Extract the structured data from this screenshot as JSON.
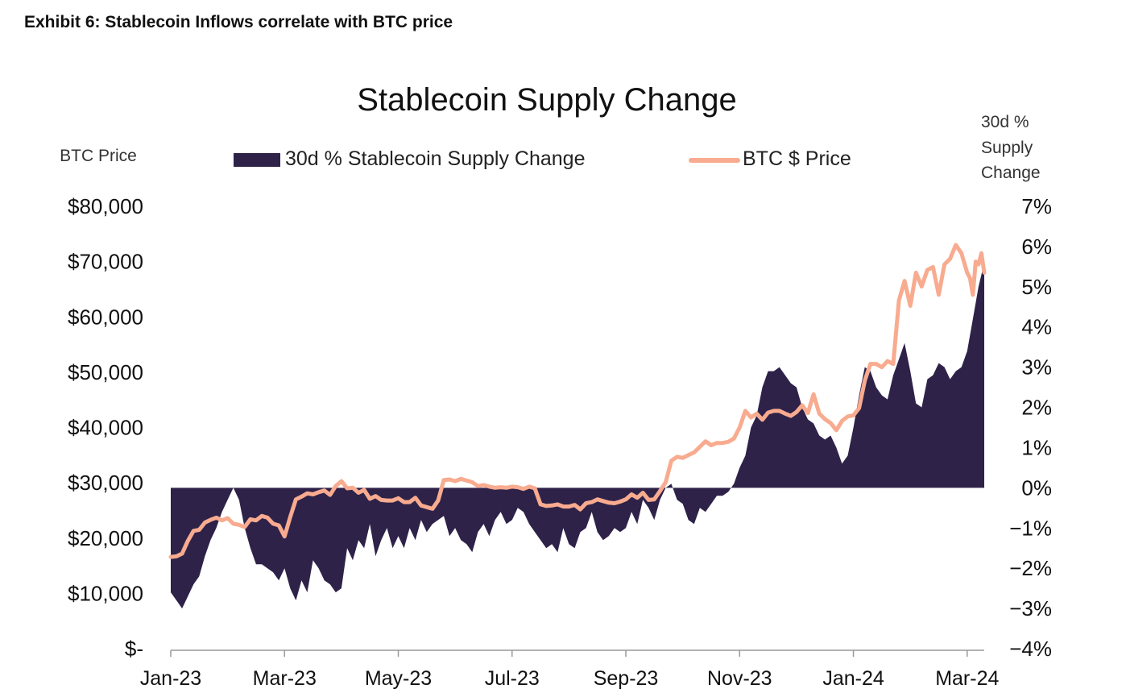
{
  "header": {
    "exhibit_title": "Exhibit 6: Stablecoin Inflows correlate with BTC price"
  },
  "colors": {
    "area": "#2e2249",
    "line": "#f8ab8f",
    "axis": "#999999"
  },
  "chart_data": {
    "type": "area+line",
    "title": "Stablecoin Supply Change",
    "legend": [
      "30d % Stablecoin Supply Change",
      "BTC $ Price"
    ],
    "legend_position": "top-center",
    "y_left": {
      "label": "BTC Price",
      "range": [
        0,
        80000
      ],
      "ticks": [
        "$80,000",
        "$70,000",
        "$60,000",
        "$50,000",
        "$40,000",
        "$30,000",
        "$20,000",
        "$10,000",
        "$-"
      ]
    },
    "y_right": {
      "label_lines": [
        "30d %",
        "Supply",
        "Change"
      ],
      "range": [
        -4,
        7
      ],
      "ticks": [
        "7%",
        "6%",
        "5%",
        "4%",
        "3%",
        "2%",
        "1%",
        "0%",
        "−1%",
        "−2%",
        "−3%",
        "−4%"
      ]
    },
    "x_axis": {
      "range_months": [
        0,
        14.3
      ],
      "tick_positions": [
        0,
        2,
        4,
        6,
        8,
        10,
        12,
        14
      ],
      "tick_labels": [
        "Jan-23",
        "Mar-23",
        "May-23",
        "Jul-23",
        "Sep-23",
        "Nov-23",
        "Jan-24",
        "Mar-24"
      ]
    },
    "series": [
      {
        "name": "30d % Stablecoin Supply Change",
        "kind": "area",
        "axis": "right",
        "x": [
          0,
          0.1,
          0.2,
          0.3,
          0.4,
          0.5,
          0.6,
          0.7,
          0.8,
          0.9,
          1.0,
          1.1,
          1.2,
          1.3,
          1.4,
          1.5,
          1.6,
          1.7,
          1.8,
          1.9,
          2.0,
          2.1,
          2.2,
          2.3,
          2.4,
          2.5,
          2.6,
          2.7,
          2.8,
          2.9,
          3.0,
          3.1,
          3.2,
          3.3,
          3.4,
          3.5,
          3.6,
          3.7,
          3.8,
          3.9,
          4.0,
          4.1,
          4.2,
          4.3,
          4.4,
          4.5,
          4.6,
          4.7,
          4.8,
          4.9,
          5.0,
          5.1,
          5.2,
          5.3,
          5.4,
          5.5,
          5.6,
          5.7,
          5.8,
          5.9,
          6.0,
          6.1,
          6.2,
          6.3,
          6.4,
          6.5,
          6.6,
          6.7,
          6.8,
          6.9,
          7.0,
          7.1,
          7.2,
          7.3,
          7.4,
          7.5,
          7.6,
          7.7,
          7.8,
          7.9,
          8.0,
          8.1,
          8.2,
          8.3,
          8.4,
          8.5,
          8.6,
          8.7,
          8.8,
          8.9,
          9.0,
          9.1,
          9.2,
          9.3,
          9.4,
          9.5,
          9.6,
          9.7,
          9.8,
          9.9,
          10.0,
          10.1,
          10.2,
          10.3,
          10.4,
          10.5,
          10.6,
          10.7,
          10.8,
          10.9,
          11.0,
          11.1,
          11.2,
          11.3,
          11.4,
          11.5,
          11.6,
          11.7,
          11.8,
          11.9,
          12.0,
          12.1,
          12.2,
          12.3,
          12.4,
          12.5,
          12.6,
          12.7,
          12.8,
          12.9,
          13.0,
          13.1,
          13.2,
          13.3,
          13.4,
          13.5,
          13.6,
          13.7,
          13.8,
          13.9,
          14.0,
          14.1,
          14.2,
          14.3
        ],
        "values": [
          -2.6,
          -2.8,
          -3.0,
          -2.7,
          -2.4,
          -2.2,
          -1.7,
          -1.3,
          -1.0,
          -0.6,
          -0.3,
          0.0,
          -0.3,
          -1.0,
          -1.5,
          -1.9,
          -1.9,
          -2.0,
          -2.1,
          -2.3,
          -2.0,
          -2.5,
          -2.8,
          -2.3,
          -2.6,
          -1.8,
          -2.0,
          -2.3,
          -2.4,
          -2.6,
          -2.5,
          -1.5,
          -1.8,
          -1.3,
          -1.5,
          -0.9,
          -1.7,
          -1.3,
          -1.0,
          -1.5,
          -1.2,
          -1.5,
          -1.0,
          -1.3,
          -0.8,
          -1.1,
          -0.9,
          -0.8,
          -0.7,
          -1.2,
          -1.0,
          -1.3,
          -1.4,
          -1.6,
          -1.1,
          -0.9,
          -1.2,
          -0.8,
          -0.6,
          -0.9,
          -0.8,
          -0.5,
          -0.6,
          -0.9,
          -1.1,
          -1.3,
          -1.5,
          -1.4,
          -1.6,
          -1.0,
          -1.4,
          -1.5,
          -1.1,
          -1.0,
          -0.6,
          -1.1,
          -1.3,
          -1.2,
          -1.0,
          -1.1,
          -1.0,
          -0.6,
          -0.9,
          -0.3,
          -0.5,
          -0.8,
          -0.3,
          0.0,
          0.1,
          -0.3,
          -0.4,
          -0.8,
          -0.9,
          -0.5,
          -0.6,
          -0.4,
          -0.2,
          -0.2,
          -0.1,
          0.1,
          0.5,
          0.8,
          1.5,
          1.8,
          2.5,
          2.9,
          2.9,
          3.0,
          2.8,
          2.6,
          2.5,
          2.0,
          1.7,
          1.6,
          1.3,
          1.2,
          1.3,
          1.0,
          0.6,
          0.8,
          1.5,
          2.3,
          3.0,
          2.9,
          2.5,
          2.3,
          2.2,
          2.8,
          3.2,
          3.6,
          2.9,
          2.1,
          2.0,
          2.7,
          2.8,
          3.1,
          3.0,
          2.7,
          2.9,
          3.0,
          3.4,
          4.2,
          5.0,
          5.6
        ]
      },
      {
        "name": "BTC $ Price",
        "kind": "line",
        "axis": "left",
        "x": [
          0,
          0.1,
          0.2,
          0.3,
          0.4,
          0.5,
          0.6,
          0.7,
          0.8,
          0.9,
          1.0,
          1.1,
          1.2,
          1.3,
          1.4,
          1.5,
          1.6,
          1.7,
          1.8,
          1.9,
          2.0,
          2.1,
          2.2,
          2.3,
          2.4,
          2.5,
          2.6,
          2.7,
          2.8,
          2.9,
          3.0,
          3.1,
          3.2,
          3.3,
          3.4,
          3.5,
          3.6,
          3.7,
          3.8,
          3.9,
          4.0,
          4.1,
          4.2,
          4.3,
          4.4,
          4.5,
          4.6,
          4.7,
          4.8,
          4.9,
          5.0,
          5.1,
          5.2,
          5.3,
          5.4,
          5.5,
          5.6,
          5.7,
          5.8,
          5.9,
          6.0,
          6.1,
          6.2,
          6.3,
          6.4,
          6.5,
          6.6,
          6.7,
          6.8,
          6.9,
          7.0,
          7.1,
          7.2,
          7.3,
          7.4,
          7.5,
          7.6,
          7.7,
          7.8,
          7.9,
          8.0,
          8.1,
          8.2,
          8.3,
          8.4,
          8.5,
          8.6,
          8.7,
          8.8,
          8.9,
          9.0,
          9.1,
          9.2,
          9.3,
          9.4,
          9.5,
          9.6,
          9.7,
          9.8,
          9.9,
          10.0,
          10.1,
          10.2,
          10.3,
          10.4,
          10.5,
          10.6,
          10.7,
          10.8,
          10.9,
          11.0,
          11.1,
          11.2,
          11.3,
          11.4,
          11.5,
          11.6,
          11.7,
          11.8,
          11.9,
          12.0,
          12.1,
          12.2,
          12.3,
          12.4,
          12.5,
          12.6,
          12.7,
          12.8,
          12.9,
          13.0,
          13.1,
          13.2,
          13.3,
          13.4,
          13.5,
          13.6,
          13.7,
          13.8,
          13.9,
          14.0,
          14.05,
          14.1,
          14.15,
          14.2,
          14.25,
          14.3
        ],
        "values": [
          16600,
          16700,
          17200,
          19500,
          21300,
          21500,
          22800,
          23300,
          23700,
          23200,
          23600,
          22600,
          22400,
          22000,
          23400,
          23200,
          24000,
          23700,
          22600,
          22300,
          20300,
          23800,
          27000,
          27500,
          28100,
          27900,
          28300,
          28600,
          27800,
          29400,
          30300,
          29000,
          29100,
          28200,
          28700,
          27100,
          27600,
          26900,
          26800,
          26800,
          27200,
          26500,
          26500,
          27300,
          25900,
          25600,
          25300,
          26800,
          30500,
          30600,
          30300,
          30700,
          30400,
          30100,
          29400,
          29600,
          29300,
          29100,
          29200,
          29100,
          29300,
          29200,
          28900,
          29300,
          29000,
          26100,
          25800,
          25900,
          26100,
          25700,
          25700,
          26000,
          25200,
          26300,
          26500,
          27000,
          26700,
          26400,
          26300,
          26600,
          27000,
          27900,
          27300,
          28200,
          26900,
          27000,
          28500,
          30100,
          34000,
          34700,
          34500,
          35000,
          35500,
          36500,
          37500,
          36800,
          37200,
          37200,
          37400,
          38000,
          40000,
          43000,
          41800,
          42500,
          41400,
          42700,
          43000,
          43000,
          42500,
          42100,
          42800,
          44000,
          42600,
          46000,
          42500,
          41500,
          40800,
          39500,
          41200,
          42000,
          42200,
          43500,
          48500,
          51500,
          51500,
          50900,
          52000,
          51500,
          63000,
          66500,
          62000,
          68000,
          65500,
          68500,
          69000,
          64000,
          69500,
          70500,
          73000,
          71500,
          68000,
          67000,
          64000,
          70000,
          69500,
          71500,
          68000
        ]
      }
    ]
  }
}
